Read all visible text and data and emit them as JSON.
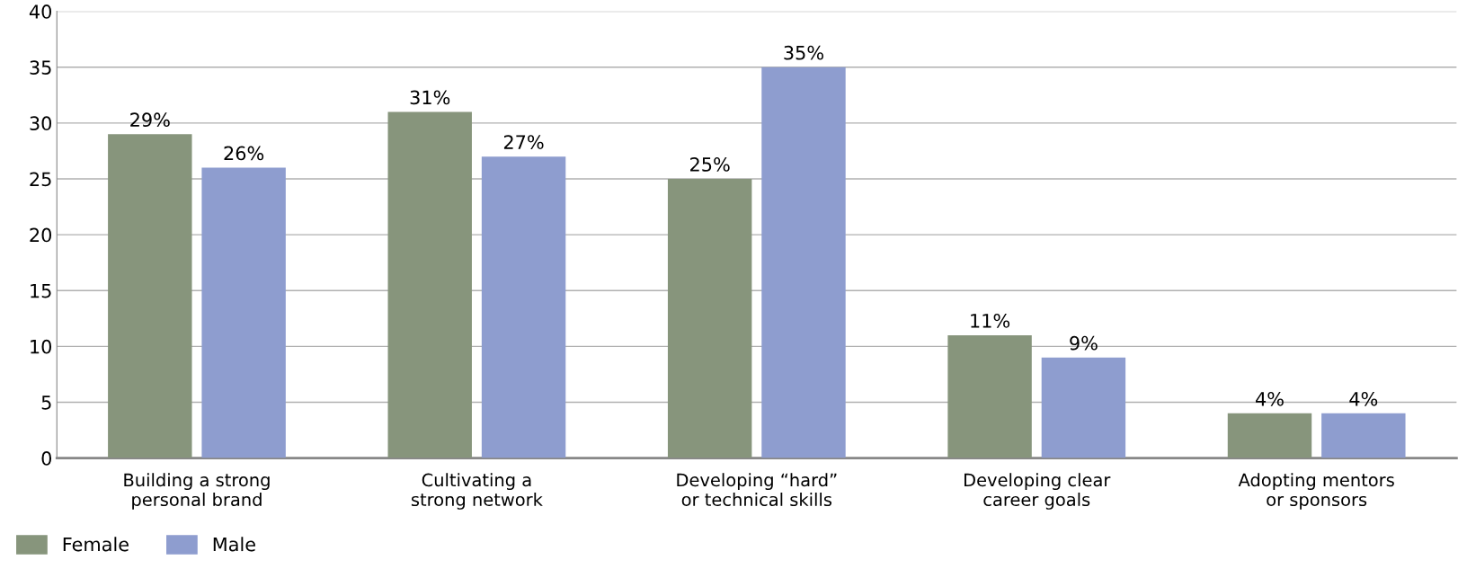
{
  "chart_data": {
    "type": "bar",
    "categories": [
      "Building a strong\npersonal brand",
      "Cultivating a\nstrong network",
      "Developing “hard”\nor technical skills",
      "Developing clear\ncareer goals",
      "Adopting mentors\nor sponsors"
    ],
    "series": [
      {
        "name": "Female",
        "color": "#87957c",
        "values": [
          29,
          31,
          25,
          11,
          4
        ],
        "value_labels": [
          "29%",
          "31%",
          "25%",
          "11%",
          "4%"
        ]
      },
      {
        "name": "Male",
        "color": "#8e9dcf",
        "values": [
          26,
          27,
          35,
          9,
          4
        ],
        "value_labels": [
          "26%",
          "27%",
          "35%",
          "9%",
          "4%"
        ]
      }
    ],
    "ylim": [
      0,
      40
    ],
    "yticks": [
      0,
      5,
      10,
      15,
      20,
      25,
      30,
      35,
      40
    ],
    "grid": "y",
    "legend": "bottom left"
  }
}
